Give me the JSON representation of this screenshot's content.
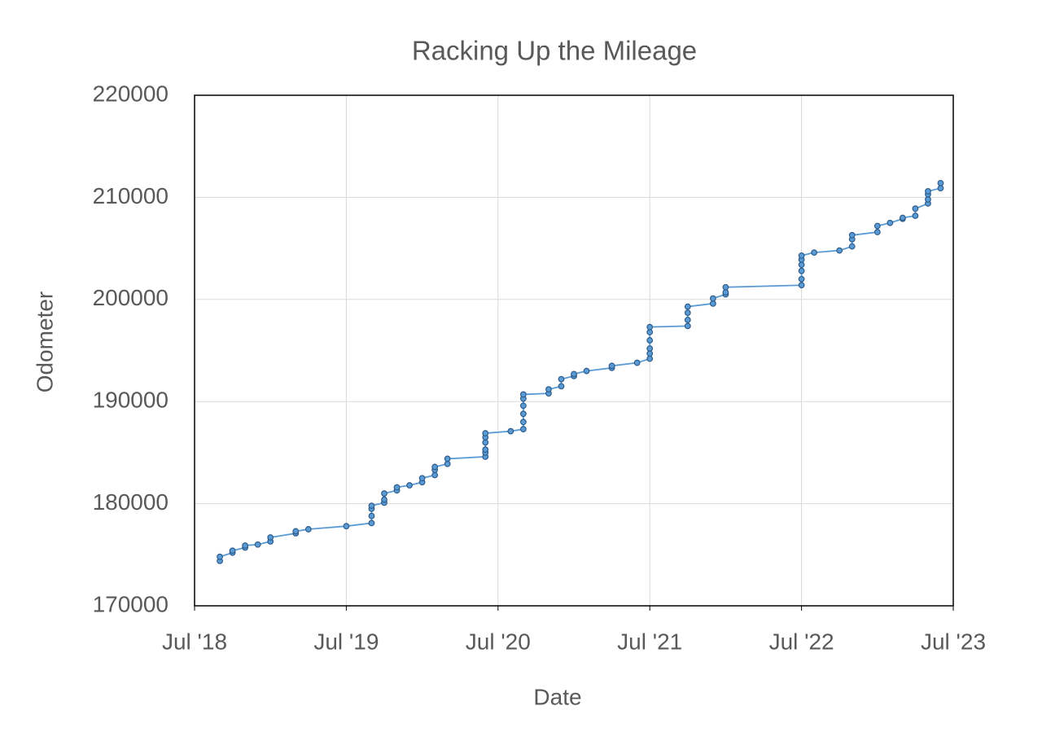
{
  "chart_data": {
    "type": "line",
    "title": "Racking Up the Mileage",
    "x_label": "Date",
    "y_label": "Odometer",
    "color": "#5b9bd5",
    "marker_edge_color": "#2e5c8a",
    "grid": true,
    "x": [
      "2018-09",
      "2018-09",
      "2018-10",
      "2018-10",
      "2018-11",
      "2018-11",
      "2018-12",
      "2019-01",
      "2019-01",
      "2019-03",
      "2019-03",
      "2019-04",
      "2019-07",
      "2019-09",
      "2019-09",
      "2019-09",
      "2019-09",
      "2019-10",
      "2019-10",
      "2019-10",
      "2019-11",
      "2019-11",
      "2019-12",
      "2020-01",
      "2020-01",
      "2020-02",
      "2020-02",
      "2020-02",
      "2020-03",
      "2020-03",
      "2020-06",
      "2020-06",
      "2020-06",
      "2020-06",
      "2020-06",
      "2020-06",
      "2020-08",
      "2020-09",
      "2020-09",
      "2020-09",
      "2020-09",
      "2020-09",
      "2020-09",
      "2020-11",
      "2020-11",
      "2020-12",
      "2020-12",
      "2021-01",
      "2021-01",
      "2021-02",
      "2021-04",
      "2021-04",
      "2021-06",
      "2021-07",
      "2021-07",
      "2021-07",
      "2021-07",
      "2021-07",
      "2021-07",
      "2021-10",
      "2021-10",
      "2021-10",
      "2021-10",
      "2021-12",
      "2021-12",
      "2022-01",
      "2022-01",
      "2022-01",
      "2022-07",
      "2022-07",
      "2022-07",
      "2022-07",
      "2022-07",
      "2022-07",
      "2022-08",
      "2022-10",
      "2022-11",
      "2022-11",
      "2022-11",
      "2023-01",
      "2023-01",
      "2023-02",
      "2023-03",
      "2023-03",
      "2023-04",
      "2023-04",
      "2023-05",
      "2023-05",
      "2023-05",
      "2023-05",
      "2023-06",
      "2023-06"
    ],
    "values": [
      174400,
      174800,
      175200,
      175400,
      175700,
      175900,
      176000,
      176300,
      176700,
      177100,
      177300,
      177500,
      177800,
      178100,
      178800,
      179500,
      179800,
      180100,
      180400,
      181000,
      181300,
      181600,
      181800,
      182100,
      182500,
      182800,
      183300,
      183600,
      183900,
      184400,
      184600,
      185000,
      185300,
      186000,
      186500,
      186900,
      187100,
      187300,
      188000,
      188800,
      189600,
      190300,
      190700,
      190800,
      191200,
      191500,
      192200,
      192500,
      192700,
      193000,
      193300,
      193500,
      193800,
      194200,
      194700,
      195200,
      196000,
      196800,
      197300,
      197400,
      198000,
      198700,
      199300,
      199600,
      200100,
      200500,
      200700,
      201200,
      201400,
      202000,
      202800,
      203400,
      203900,
      204300,
      204600,
      204800,
      205200,
      205900,
      206300,
      206600,
      207200,
      207500,
      207900,
      208000,
      208200,
      208900,
      209400,
      209800,
      210300,
      210600,
      210900,
      211400
    ],
    "xlim": [
      "2018-07",
      "2023-07"
    ],
    "xticks": [
      {
        "value": "2018-07",
        "label": "Jul '18"
      },
      {
        "value": "2019-07",
        "label": "Jul '19"
      },
      {
        "value": "2020-07",
        "label": "Jul '20"
      },
      {
        "value": "2021-07",
        "label": "Jul '21"
      },
      {
        "value": "2022-07",
        "label": "Jul '22"
      },
      {
        "value": "2023-07",
        "label": "Jul '23"
      }
    ],
    "ylim": [
      170000,
      220000
    ],
    "yticks": [
      170000,
      180000,
      190000,
      200000,
      210000,
      220000
    ]
  }
}
